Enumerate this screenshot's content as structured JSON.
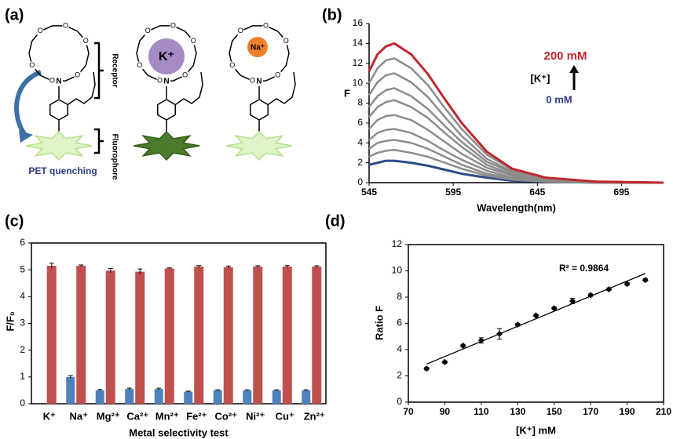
{
  "diagram": {
    "panel_label": "(a)",
    "receptor": "Receptor",
    "fluorophore": "Fluorophore",
    "pet": "PET quenching",
    "k_ion": "K⁺",
    "na_ion": "Na⁺",
    "oxygen": "O",
    "nitrogen": "N"
  },
  "chart_data": [
    {
      "type": "line",
      "panel_label": "(b)",
      "x_label": "Wavelength(nm)",
      "y_label": "F",
      "x": [
        545,
        550,
        555,
        560,
        570,
        580,
        590,
        600,
        615,
        630,
        650,
        680,
        720
      ],
      "series": [
        {
          "color": "#2e4a8a",
          "values": [
            1.8,
            2.0,
            2.2,
            2.2,
            2.0,
            1.7,
            1.3,
            0.9,
            0.5,
            0.2,
            0.1,
            0,
            0
          ]
        },
        {
          "color": "#8c8c8c",
          "values": [
            2.6,
            3.0,
            3.2,
            3.3,
            3.0,
            2.6,
            2.0,
            1.4,
            0.7,
            0.3,
            0.1,
            0,
            0
          ]
        },
        {
          "color": "#8c8c8c",
          "values": [
            3.4,
            4.0,
            4.2,
            4.3,
            4.0,
            3.4,
            2.6,
            1.8,
            0.9,
            0.4,
            0.2,
            0,
            0
          ]
        },
        {
          "color": "#8c8c8c",
          "values": [
            4.3,
            5.0,
            5.3,
            5.4,
            5.0,
            4.2,
            3.2,
            2.3,
            1.2,
            0.5,
            0.2,
            0.1,
            0
          ]
        },
        {
          "color": "#8c8c8c",
          "values": [
            5.4,
            6.3,
            6.7,
            6.8,
            6.3,
            5.3,
            4.1,
            2.9,
            1.5,
            0.7,
            0.2,
            0.1,
            0
          ]
        },
        {
          "color": "#8c8c8c",
          "values": [
            6.6,
            7.6,
            8.1,
            8.3,
            7.6,
            6.5,
            5.0,
            3.6,
            1.8,
            0.8,
            0.3,
            0.1,
            0
          ]
        },
        {
          "color": "#8c8c8c",
          "values": [
            7.6,
            8.7,
            9.3,
            9.5,
            8.7,
            7.4,
            5.7,
            4.1,
            2.1,
            1.0,
            0.3,
            0.1,
            0
          ]
        },
        {
          "color": "#8c8c8c",
          "values": [
            8.8,
            10.1,
            10.8,
            11.0,
            10.1,
            8.6,
            6.6,
            4.7,
            2.4,
            1.1,
            0.4,
            0.1,
            0
          ]
        },
        {
          "color": "#8c8c8c",
          "values": [
            10.0,
            11.5,
            12.3,
            12.5,
            11.5,
            9.8,
            7.5,
            5.4,
            2.8,
            1.3,
            0.4,
            0.1,
            0
          ]
        },
        {
          "color": "#c0272d",
          "values": [
            11.2,
            12.9,
            13.7,
            14.0,
            12.9,
            10.9,
            8.4,
            6.0,
            3.1,
            1.4,
            0.5,
            0.1,
            0
          ]
        }
      ],
      "xlim": [
        545,
        720
      ],
      "xticks": [
        545,
        595,
        645,
        695
      ],
      "ylim": [
        0,
        16
      ],
      "yticks": [
        0,
        2,
        4,
        6,
        8,
        10,
        12,
        14,
        16
      ],
      "grid": false,
      "annotations": [
        "200 mM",
        "[K⁺]",
        "0 mM"
      ]
    },
    {
      "type": "bar",
      "panel_label": "(c)",
      "x_label": "Metal selectivity test",
      "y_label": "F/F₀",
      "categories": [
        "K⁺",
        "Na⁺",
        "Mg²⁺",
        "Ca²⁺",
        "Mn²⁺",
        "Fe²⁺",
        "Co²⁺",
        "Ni²⁺",
        "Cu⁺",
        "Zn²⁺"
      ],
      "series": [
        {
          "color": "#4f81bd",
          "values": [
            null,
            1.0,
            0.5,
            0.55,
            0.55,
            0.45,
            0.5,
            0.5,
            0.5,
            0.5
          ],
          "errors": [
            null,
            0.05,
            0.03,
            0.03,
            0.03,
            0.02,
            0.02,
            0.02,
            0.02,
            0.02
          ]
        },
        {
          "color": "#c0504d",
          "values": [
            5.15,
            5.15,
            4.97,
            4.93,
            5.05,
            5.12,
            5.1,
            5.12,
            5.12,
            5.12
          ],
          "errors": [
            0.1,
            0.03,
            0.08,
            0.1,
            0.02,
            0.04,
            0.04,
            0.03,
            0.04,
            0.03
          ]
        }
      ],
      "ylim": [
        0,
        6
      ],
      "yticks": [
        0,
        1,
        2,
        3,
        4,
        5,
        6
      ],
      "grid": false
    },
    {
      "type": "scatter",
      "panel_label": "(d)",
      "x_label": "[K⁺] mM",
      "y_label": "Ratio F",
      "x": [
        80,
        90,
        100,
        110,
        120,
        130,
        140,
        150,
        160,
        170,
        180,
        190,
        200
      ],
      "values": [
        2.55,
        3.05,
        4.3,
        4.7,
        5.2,
        5.9,
        6.6,
        7.15,
        7.7,
        8.15,
        8.6,
        9.0,
        9.3
      ],
      "errors": [
        0.1,
        0.1,
        0.1,
        0.2,
        0.4,
        0.1,
        0.1,
        0.1,
        0.2,
        0.1,
        0.1,
        0.1,
        0.1
      ],
      "color": "#000000",
      "trendline": {
        "x": [
          80,
          200
        ],
        "y": [
          2.9,
          9.8
        ]
      },
      "annotation": "R² = 0.9864",
      "xlim": [
        70,
        210
      ],
      "xticks": [
        70,
        90,
        110,
        130,
        150,
        170,
        190,
        210
      ],
      "ylim": [
        0,
        12
      ],
      "yticks": [
        0,
        2,
        4,
        6,
        8,
        10,
        12
      ],
      "grid": false
    }
  ]
}
